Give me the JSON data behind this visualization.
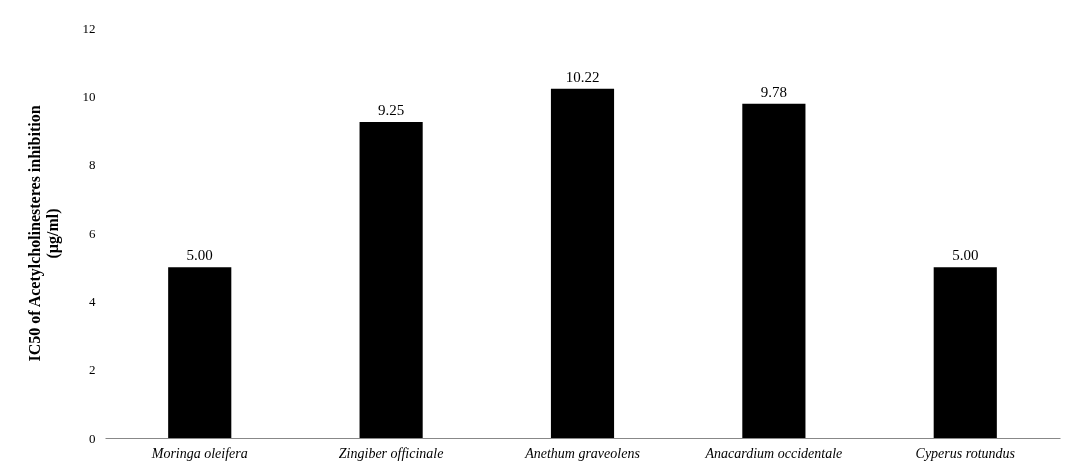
{
  "chart_data": {
    "type": "bar",
    "ylabel": "IC50 of Acetylcholinesteres inhibition\n(µg/ml)",
    "categories": [
      "Moringa oleifera",
      "Zingiber officinale",
      "Anethum graveolens",
      "Anacardium occidentale",
      "Cyperus rotundus"
    ],
    "values": [
      5,
      9.25,
      10.22,
      9.78,
      5
    ],
    "value_labels": [
      "5.00",
      "9.25",
      "10.22",
      "9.78",
      "5.00"
    ],
    "color": "#000000",
    "ylim": [
      0,
      12
    ],
    "yticks": [
      0,
      2,
      4,
      6,
      8,
      10,
      12
    ],
    "grid": false
  }
}
